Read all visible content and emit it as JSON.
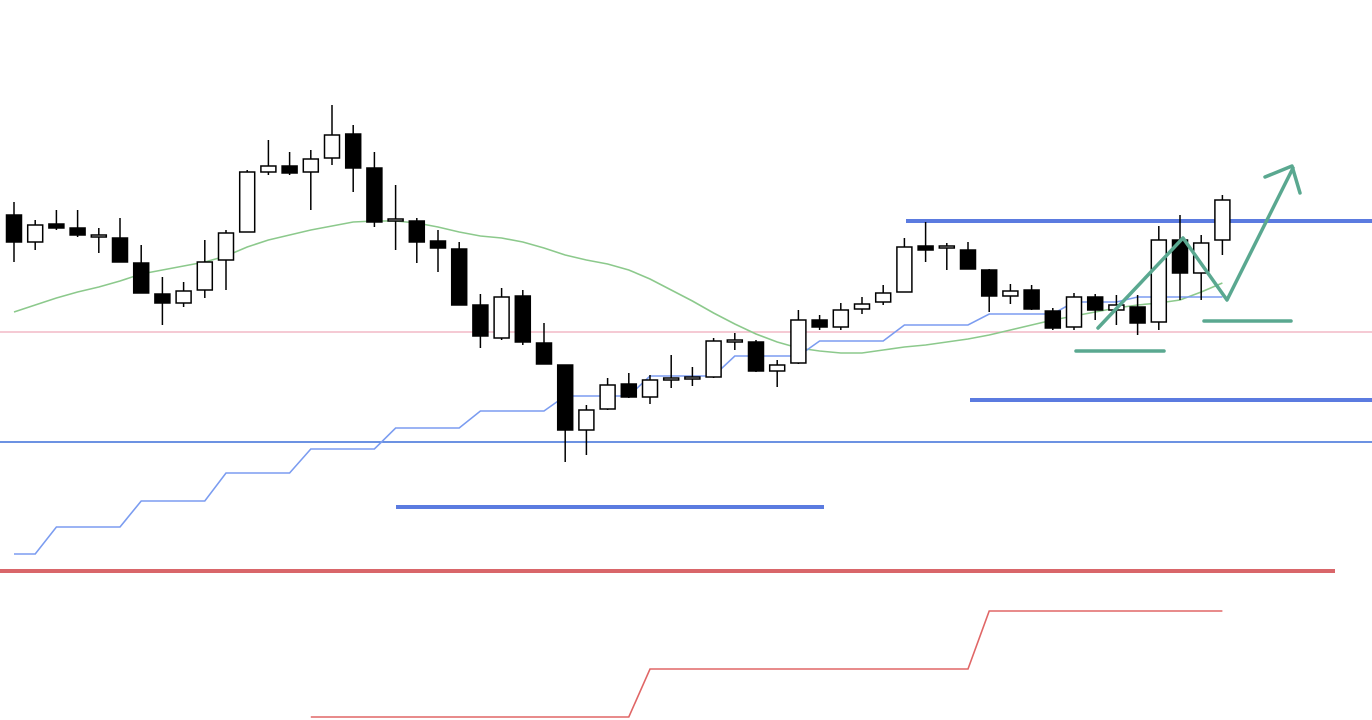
{
  "chart_data": {
    "type": "candlestick",
    "ylim": [
      0,
      720
    ],
    "up_color": "#ffffff",
    "down_color": "#000000",
    "open": [
      505,
      478,
      496,
      492,
      483,
      482,
      457,
      426,
      417,
      430,
      460,
      488,
      548,
      554,
      548,
      562,
      586,
      552,
      499,
      499,
      479,
      471,
      415,
      382,
      424,
      377,
      355,
      290,
      311,
      336,
      323,
      340,
      341,
      343,
      378,
      378,
      349,
      357,
      400,
      393,
      411,
      418,
      428,
      474,
      472,
      470,
      450,
      424,
      430,
      409,
      393,
      423,
      410,
      413,
      398,
      480,
      447,
      480
    ],
    "high": [
      518,
      500,
      510,
      510,
      492,
      502,
      475,
      443,
      438,
      480,
      490,
      550,
      580,
      568,
      570,
      615,
      595,
      568,
      535,
      502,
      490,
      478,
      426,
      432,
      430,
      397,
      355,
      315,
      342,
      347,
      345,
      365,
      353,
      382,
      387,
      380,
      360,
      410,
      405,
      417,
      423,
      435,
      482,
      498,
      477,
      478,
      451,
      436,
      435,
      412,
      427,
      426,
      425,
      425,
      494,
      505,
      485,
      525
    ],
    "low": [
      458,
      470,
      490,
      483,
      467,
      458,
      427,
      395,
      413,
      422,
      430,
      488,
      545,
      545,
      510,
      555,
      528,
      493,
      470,
      457,
      448,
      415,
      372,
      380,
      375,
      356,
      258,
      265,
      310,
      322,
      316,
      332,
      334,
      342,
      370,
      348,
      333,
      356,
      390,
      390,
      406,
      415,
      428,
      458,
      450,
      451,
      408,
      416,
      410,
      390,
      390,
      400,
      395,
      385,
      390,
      420,
      420,
      465
    ],
    "close": [
      478,
      495,
      492,
      485,
      485,
      458,
      427,
      417,
      429,
      458,
      487,
      548,
      554,
      547,
      561,
      585,
      552,
      498,
      501,
      478,
      472,
      415,
      384,
      423,
      378,
      356,
      290,
      310,
      335,
      323,
      340,
      342,
      343,
      379,
      380,
      349,
      355,
      400,
      393,
      410,
      416,
      427,
      473,
      470,
      474,
      451,
      424,
      429,
      411,
      392,
      423,
      410,
      415,
      397,
      480,
      447,
      477,
      520
    ],
    "series": [
      {
        "color": "#8cc98c",
        "values": [
          408,
          415,
          422,
          428,
          433,
          439,
          446,
          450,
          454,
          458,
          464,
          473,
          480,
          485,
          490,
          494,
          498,
          499,
          499,
          497,
          493,
          488,
          484,
          482,
          478,
          472,
          465,
          460,
          456,
          450,
          441,
          430,
          419,
          407,
          396,
          386,
          378,
          372,
          369,
          367,
          367,
          370,
          373,
          375,
          378,
          381,
          385,
          390,
          395,
          400,
          404,
          408,
          412,
          415,
          417,
          420,
          428,
          437
        ]
      },
      {
        "color": "#7b9cf0",
        "values": [
          166,
          166,
          193,
          193,
          193,
          193,
          219,
          219,
          219,
          219,
          247,
          247,
          247,
          247,
          271,
          271,
          271,
          271,
          292,
          292,
          292,
          292,
          309,
          309,
          309,
          309,
          324,
          324,
          324,
          324,
          344,
          344,
          344,
          344,
          364,
          364,
          364,
          364,
          379,
          379,
          379,
          379,
          395,
          395,
          395,
          395,
          406,
          406,
          406,
          406,
          418,
          418,
          418,
          423,
          423,
          423,
          423,
          423
        ]
      },
      {
        "color": "#e06666",
        "values": [
          null,
          null,
          null,
          null,
          null,
          null,
          null,
          null,
          null,
          null,
          null,
          null,
          null,
          null,
          3,
          3,
          3,
          3,
          3,
          3,
          3,
          3,
          3,
          3,
          3,
          3,
          3,
          3,
          3,
          3,
          51,
          51,
          51,
          51,
          51,
          51,
          51,
          51,
          51,
          51,
          51,
          51,
          51,
          51,
          51,
          51,
          109,
          109,
          109,
          109,
          109,
          109,
          109,
          109,
          109,
          109,
          109,
          109
        ]
      }
    ]
  }
}
